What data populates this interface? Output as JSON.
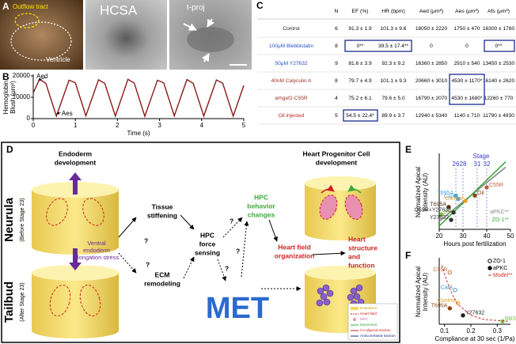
{
  "panel_labels": [
    "A",
    "B",
    "C",
    "D",
    "E",
    "F"
  ],
  "panel_a": {
    "labels": [
      "Outflow tract",
      "Ventricle",
      "HCSA",
      "t-proj"
    ]
  },
  "chart_data": [
    {
      "type": "line",
      "color": "#8b1a1a",
      "x": [
        0,
        0.15,
        0.3,
        0.55,
        0.85,
        1.0,
        1.25,
        1.55,
        1.7,
        1.95,
        2.25,
        2.4,
        2.65,
        2.95,
        3.1,
        3.35,
        3.65,
        3.8,
        4.05,
        4.35,
        4.5,
        4.75,
        5
      ],
      "values": [
        12000,
        18500,
        16500,
        1200,
        18000,
        16800,
        1300,
        18200,
        16500,
        1200,
        18400,
        16600,
        1100,
        18000,
        16700,
        1300,
        18300,
        16500,
        1200,
        18100,
        16600,
        1200,
        15500
      ],
      "xlim": [
        0,
        5
      ],
      "xticks": [
        0,
        1,
        2,
        3,
        4,
        5
      ],
      "ylim": [
        0,
        20000
      ],
      "yticks": [
        0,
        10000,
        20000
      ],
      "xlabel": "Time (s)",
      "ylabel": [
        "Hemoglobin",
        "Blush (μm²)"
      ],
      "annotations": [
        "Aed",
        "Aes"
      ]
    },
    {
      "type": "line",
      "x": [
        20,
        48
      ],
      "series": [
        {
          "name": "aPKC**",
          "color": "#8a8a8a",
          "values": [
            0.12,
            0.92
          ]
        },
        {
          "name": "ZO-1**",
          "color": "#3aaa3a",
          "values": [
            0.05,
            1.0
          ]
        }
      ],
      "points": {
        "x": [
          27,
          28,
          31,
          35,
          40,
          21,
          24,
          26,
          25
        ],
        "values": [
          0.5,
          0.45,
          0.42,
          0.5,
          0.62,
          0.22,
          0.33,
          0.25,
          0.14
        ],
        "labels": [
          "T695A",
          "CalA",
          "Control",
          "Oil",
          "C55R",
          "BBS",
          "T695A",
          "G55R+Y27632",
          "Y27632"
        ],
        "colors": [
          "#4aa3df",
          "#4aa3df",
          "#e0a020",
          "#8b4513",
          "#c0603a",
          "#7cc242",
          "#5a3010",
          "#333333",
          "#333333"
        ]
      },
      "x2label": "Stage",
      "x2ticks": [
        {
          "value": 27,
          "label": "26"
        },
        {
          "value": 30,
          "label": "28"
        },
        {
          "value": 36,
          "label": "31"
        },
        {
          "value": 40,
          "label": "32"
        }
      ],
      "xlim": [
        20,
        50
      ],
      "xticks": [
        20,
        30,
        40,
        50
      ],
      "ylim": [
        0,
        1.1
      ],
      "xlabel": "Hours post fertilization",
      "ylabel": [
        "Normalized Apical",
        "Intensity (AU)"
      ]
    },
    {
      "type": "scatter",
      "series": [
        {
          "name": "ZO-1",
          "marker": "open",
          "x": [
            0.12,
            0.14,
            0.15
          ],
          "values": [
            0.88,
            0.58,
            0.36
          ],
          "labels": [
            "C55R",
            "CalA",
            "Control"
          ],
          "colors": [
            "#c0703a",
            "#4a90c8",
            "#e0a020"
          ]
        },
        {
          "name": "aPKC",
          "marker": "filled",
          "x": [
            0.12,
            0.17,
            0.32
          ],
          "values": [
            0.27,
            0.15,
            0.05
          ],
          "labels": [
            "T695A",
            "Y27632",
            "BBS"
          ],
          "colors": [
            "#8b4513",
            "#222222",
            "#7cc242"
          ]
        },
        {
          "name": "Model**",
          "color": "#d03030",
          "x": [
            0.09,
            0.11,
            0.13,
            0.15,
            0.2,
            0.25,
            0.34
          ],
          "values": [
            1.0,
            0.72,
            0.5,
            0.34,
            0.15,
            0.08,
            0.05
          ]
        }
      ],
      "xlim": [
        0.08,
        0.35
      ],
      "xticks": [
        0.1,
        0.2,
        0.3
      ],
      "ylim": [
        0,
        1.1
      ],
      "xlabel": "Compliance at 30 sec (1/Pa)",
      "ylabel": [
        "Normalized Apical",
        "Intensity (AU)"
      ]
    }
  ],
  "table": {
    "header": [
      "N",
      "EF (%)",
      "HR (bpm)",
      "Aed (μm²)",
      "Aes (μm²)",
      "Afs (μm²)"
    ],
    "rows": [
      [
        "Control",
        "6",
        "91.3 ± 1.9",
        "101.3 ± 9.6",
        "18050 ± 2220",
        "1750 ± 470",
        "16300 ± 1780"
      ],
      [
        "100μM Blebbistatin",
        "8",
        "0**",
        "39.5 ± 17.4**",
        "0",
        "0",
        "0**"
      ],
      [
        "50μM Y27632",
        "9",
        "81.6 ± 3.9",
        "92.3 ± 9.2",
        "16360 ± 2850",
        "2910 ± 540",
        "13450 ± 2530"
      ],
      [
        "40nM Calyculin A",
        "8",
        "79.7 ± 4.9",
        "101.1 ± 9.3",
        "20660 ± 3010",
        "4530 ± 1170*",
        "16140 ± 2620"
      ],
      [
        "arhgef2-C55R",
        "4",
        "75.2 ± 6.1",
        "79.6 ± 5.0",
        "16790 ± 2070",
        "4530 ± 1680*",
        "12260 ± 770"
      ],
      [
        "Oil injected",
        "5",
        "54.5 ± 22.4*",
        "89.9 ± 3.7",
        "12940 ± 5340",
        "1140 ± 710",
        "11790 ± 4930"
      ]
    ],
    "row_colors": [
      "#222222",
      "#2a4fc0",
      "#2a4fc0",
      "#a0302a",
      "#a0302a",
      "#c02020"
    ]
  },
  "diagram": {
    "endoderm_title": [
      "Endoderm",
      "development"
    ],
    "neurula": "Neurula",
    "neurula_stage": "(Before Stage 23)",
    "tailbud": "Tailbud",
    "tailbud_stage": "(After Stage 23)",
    "stress": [
      "Ventral",
      "endoderm",
      "elongation stress"
    ],
    "tissue_stiffening": [
      "Tissue",
      "stiffening"
    ],
    "ecm": [
      "ECM",
      "remodeling"
    ],
    "sensing": [
      "HPC",
      "force",
      "sensing"
    ],
    "hpc_title": [
      "Heart Progenitor Cell",
      "development"
    ],
    "behavior": [
      "HPC",
      "behavior",
      "changes"
    ],
    "organization": [
      "Heart field",
      "organization"
    ],
    "structure": [
      "Heart",
      "structure",
      "and",
      "function"
    ],
    "met": "MET",
    "question": "?",
    "legend": [
      "Endoderm",
      "Heart field",
      "HPC",
      "Movement",
      "Co-aligned traction",
      "Anticorrelated traction"
    ]
  }
}
